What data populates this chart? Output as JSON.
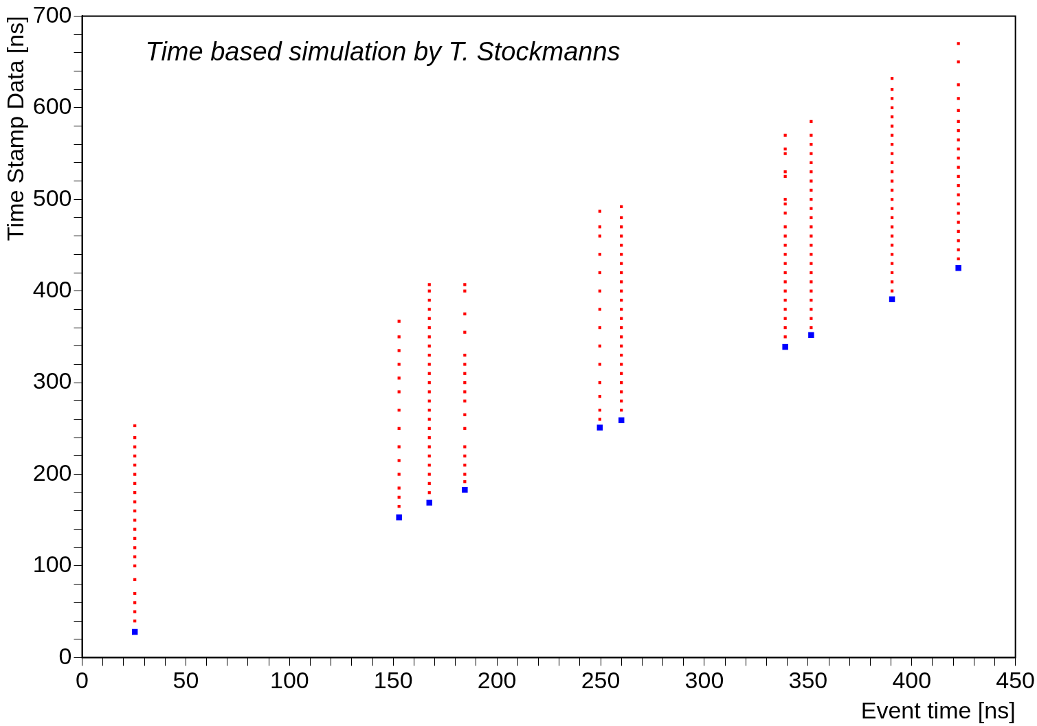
{
  "chart_data": {
    "type": "scatter",
    "xlabel": "Event time [ns]",
    "ylabel": "Time Stamp Data [ns]",
    "annotations": [
      "Time based simulation by T. Stockmanns"
    ],
    "marker": "square",
    "grid": false,
    "xlim": [
      0,
      450
    ],
    "ylim": [
      0,
      700
    ],
    "xticks": [
      0,
      {
        "value": 10,
        "label": null
      },
      {
        "value": 20,
        "label": null
      },
      {
        "value": 30,
        "label": null
      },
      {
        "value": 40,
        "label": null
      },
      50,
      {
        "value": 60,
        "label": null
      },
      {
        "value": 70,
        "label": null
      },
      {
        "value": 80,
        "label": null
      },
      {
        "value": 90,
        "label": null
      },
      100,
      {
        "value": 110,
        "label": null
      },
      {
        "value": 120,
        "label": null
      },
      {
        "value": 130,
        "label": null
      },
      {
        "value": 140,
        "label": null
      },
      150,
      {
        "value": 160,
        "label": null
      },
      {
        "value": 170,
        "label": null
      },
      {
        "value": 180,
        "label": null
      },
      {
        "value": 190,
        "label": null
      },
      200,
      {
        "value": 210,
        "label": null
      },
      {
        "value": 220,
        "label": null
      },
      {
        "value": 230,
        "label": null
      },
      {
        "value": 240,
        "label": null
      },
      250,
      {
        "value": 260,
        "label": null
      },
      {
        "value": 270,
        "label": null
      },
      {
        "value": 280,
        "label": null
      },
      {
        "value": 290,
        "label": null
      },
      300,
      {
        "value": 310,
        "label": null
      },
      {
        "value": 320,
        "label": null
      },
      {
        "value": 330,
        "label": null
      },
      {
        "value": 340,
        "label": null
      },
      350,
      {
        "value": 360,
        "label": null
      },
      {
        "value": 370,
        "label": null
      },
      {
        "value": 380,
        "label": null
      },
      {
        "value": 390,
        "label": null
      },
      400,
      {
        "value": 410,
        "label": null
      },
      {
        "value": 420,
        "label": null
      },
      {
        "value": 430,
        "label": null
      },
      {
        "value": 440,
        "label": null
      },
      450
    ],
    "yticks": [
      0,
      {
        "value": 20,
        "label": null
      },
      {
        "value": 40,
        "label": null
      },
      {
        "value": 60,
        "label": null
      },
      {
        "value": 80,
        "label": null
      },
      100,
      {
        "value": 120,
        "label": null
      },
      {
        "value": 140,
        "label": null
      },
      {
        "value": 160,
        "label": null
      },
      {
        "value": 180,
        "label": null
      },
      200,
      {
        "value": 220,
        "label": null
      },
      {
        "value": 240,
        "label": null
      },
      {
        "value": 260,
        "label": null
      },
      {
        "value": 280,
        "label": null
      },
      300,
      {
        "value": 320,
        "label": null
      },
      {
        "value": 340,
        "label": null
      },
      {
        "value": 360,
        "label": null
      },
      {
        "value": 380,
        "label": null
      },
      400,
      {
        "value": 420,
        "label": null
      },
      {
        "value": 440,
        "label": null
      },
      {
        "value": 460,
        "label": null
      },
      {
        "value": 480,
        "label": null
      },
      500,
      {
        "value": 520,
        "label": null
      },
      {
        "value": 540,
        "label": null
      },
      {
        "value": 560,
        "label": null
      },
      {
        "value": 580,
        "label": null
      },
      600,
      {
        "value": 620,
        "label": null
      },
      {
        "value": 640,
        "label": null
      },
      {
        "value": 660,
        "label": null
      },
      {
        "value": 680,
        "label": null
      },
      700
    ],
    "series": [
      {
        "type": "scatter",
        "color": "#ff0000",
        "x": [
          25.4,
          25.4,
          25.4,
          25.4,
          25.4,
          25.4,
          25.4,
          25.4,
          25.4,
          25.4,
          25.4,
          25.4,
          25.4,
          25.4,
          25.4,
          25.4,
          25.4,
          25.4,
          25.4,
          25.4,
          25.4
        ],
        "values": [
          40,
          50,
          60,
          70,
          85,
          100,
          110,
          120,
          130,
          140,
          150,
          160,
          170,
          180,
          190,
          200,
          210,
          220,
          230,
          240,
          253
        ]
      },
      {
        "type": "scatter",
        "color": "#ff0000",
        "x": [
          152.8,
          152.8,
          152.8,
          152.8,
          152.8,
          152.8,
          152.8,
          152.8,
          152.8,
          152.8,
          152.8,
          152.8,
          152.8,
          152.8
        ],
        "values": [
          165,
          175,
          185,
          200,
          215,
          230,
          250,
          270,
          290,
          305,
          320,
          335,
          350,
          367
        ]
      },
      {
        "type": "scatter",
        "color": "#ff0000",
        "x": [
          167.4,
          167.4,
          167.4,
          167.4,
          167.4,
          167.4,
          167.4,
          167.4,
          167.4,
          167.4,
          167.4,
          167.4,
          167.4,
          167.4,
          167.4,
          167.4,
          167.4,
          167.4,
          167.4,
          167.4,
          167.4,
          167.4,
          167.4,
          167.4
        ],
        "values": [
          180,
          190,
          200,
          210,
          220,
          230,
          240,
          250,
          260,
          270,
          280,
          290,
          300,
          310,
          320,
          330,
          340,
          350,
          360,
          370,
          380,
          390,
          400,
          407
        ]
      },
      {
        "type": "scatter",
        "color": "#ff0000",
        "x": [
          184.5,
          184.5,
          184.5,
          184.5,
          184.5,
          184.5,
          184.5,
          184.5,
          184.5,
          184.5,
          184.5,
          184.5,
          184.5,
          184.5,
          184.5,
          184.5,
          184.5
        ],
        "values": [
          192,
          200,
          210,
          220,
          230,
          250,
          265,
          280,
          290,
          300,
          310,
          320,
          330,
          355,
          375,
          400,
          407
        ]
      },
      {
        "type": "scatter",
        "color": "#ff0000",
        "x": [
          249.6,
          249.6,
          249.6,
          249.6,
          249.6,
          249.6,
          249.6,
          249.6,
          249.6,
          249.6,
          249.6,
          249.6,
          249.6,
          249.6
        ],
        "values": [
          260,
          270,
          285,
          300,
          320,
          340,
          360,
          380,
          400,
          420,
          440,
          460,
          470,
          487
        ]
      },
      {
        "type": "scatter",
        "color": "#ff0000",
        "x": [
          260,
          260,
          260,
          260,
          260,
          260,
          260,
          260,
          260,
          260,
          260,
          260,
          260,
          260,
          260,
          260,
          260,
          260,
          260,
          260,
          260,
          260,
          260
        ],
        "values": [
          270,
          280,
          290,
          300,
          310,
          320,
          330,
          340,
          350,
          360,
          370,
          380,
          390,
          400,
          410,
          420,
          430,
          440,
          450,
          460,
          470,
          480,
          492
        ]
      },
      {
        "type": "scatter",
        "color": "#ff0000",
        "x": [
          339,
          339,
          339,
          339,
          339,
          339,
          339,
          339,
          339,
          339,
          339,
          339,
          339,
          339,
          339,
          339,
          339,
          339,
          339,
          339,
          339
        ],
        "values": [
          350,
          360,
          370,
          380,
          390,
          400,
          410,
          420,
          430,
          440,
          450,
          460,
          470,
          485,
          495,
          500,
          525,
          530,
          550,
          555,
          570
        ]
      },
      {
        "type": "scatter",
        "color": "#ff0000",
        "x": [
          351.5,
          351.5,
          351.5,
          351.5,
          351.5,
          351.5,
          351.5,
          351.5,
          351.5,
          351.5,
          351.5,
          351.5,
          351.5,
          351.5,
          351.5,
          351.5,
          351.5,
          351.5,
          351.5,
          351.5,
          351.5,
          351.5,
          351.5
        ],
        "values": [
          360,
          370,
          380,
          390,
          400,
          410,
          420,
          430,
          440,
          450,
          460,
          470,
          480,
          490,
          500,
          510,
          520,
          530,
          540,
          550,
          560,
          570,
          585
        ]
      },
      {
        "type": "scatter",
        "color": "#ff0000",
        "x": [
          390.5,
          390.5,
          390.5,
          390.5,
          390.5,
          390.5,
          390.5,
          390.5,
          390.5,
          390.5,
          390.5,
          390.5,
          390.5,
          390.5,
          390.5,
          390.5,
          390.5,
          390.5,
          390.5,
          390.5,
          390.5,
          390.5,
          390.5,
          390.5
        ],
        "values": [
          400,
          410,
          420,
          430,
          440,
          450,
          460,
          470,
          480,
          490,
          500,
          510,
          520,
          530,
          540,
          550,
          560,
          570,
          580,
          590,
          600,
          610,
          620,
          632
        ]
      },
      {
        "type": "scatter",
        "color": "#ff0000",
        "x": [
          422.5,
          422.5,
          422.5,
          422.5,
          422.5,
          422.5,
          422.5,
          422.5,
          422.5,
          422.5,
          422.5,
          422.5,
          422.5,
          422.5,
          422.5,
          422.5,
          422.5,
          422.5,
          422.5,
          422.5,
          422.5
        ],
        "values": [
          435,
          445,
          455,
          465,
          475,
          485,
          495,
          505,
          515,
          525,
          535,
          545,
          555,
          565,
          575,
          585,
          597,
          610,
          625,
          650,
          670
        ]
      },
      {
        "type": "scatter",
        "color": "#0000ff",
        "x": [
          25.4,
          152.8,
          167.4,
          184.5,
          249.6,
          260,
          339,
          351.5,
          390.5,
          422.5
        ],
        "values": [
          28,
          153,
          169,
          183,
          251,
          259,
          339,
          352,
          391,
          425
        ]
      }
    ]
  }
}
